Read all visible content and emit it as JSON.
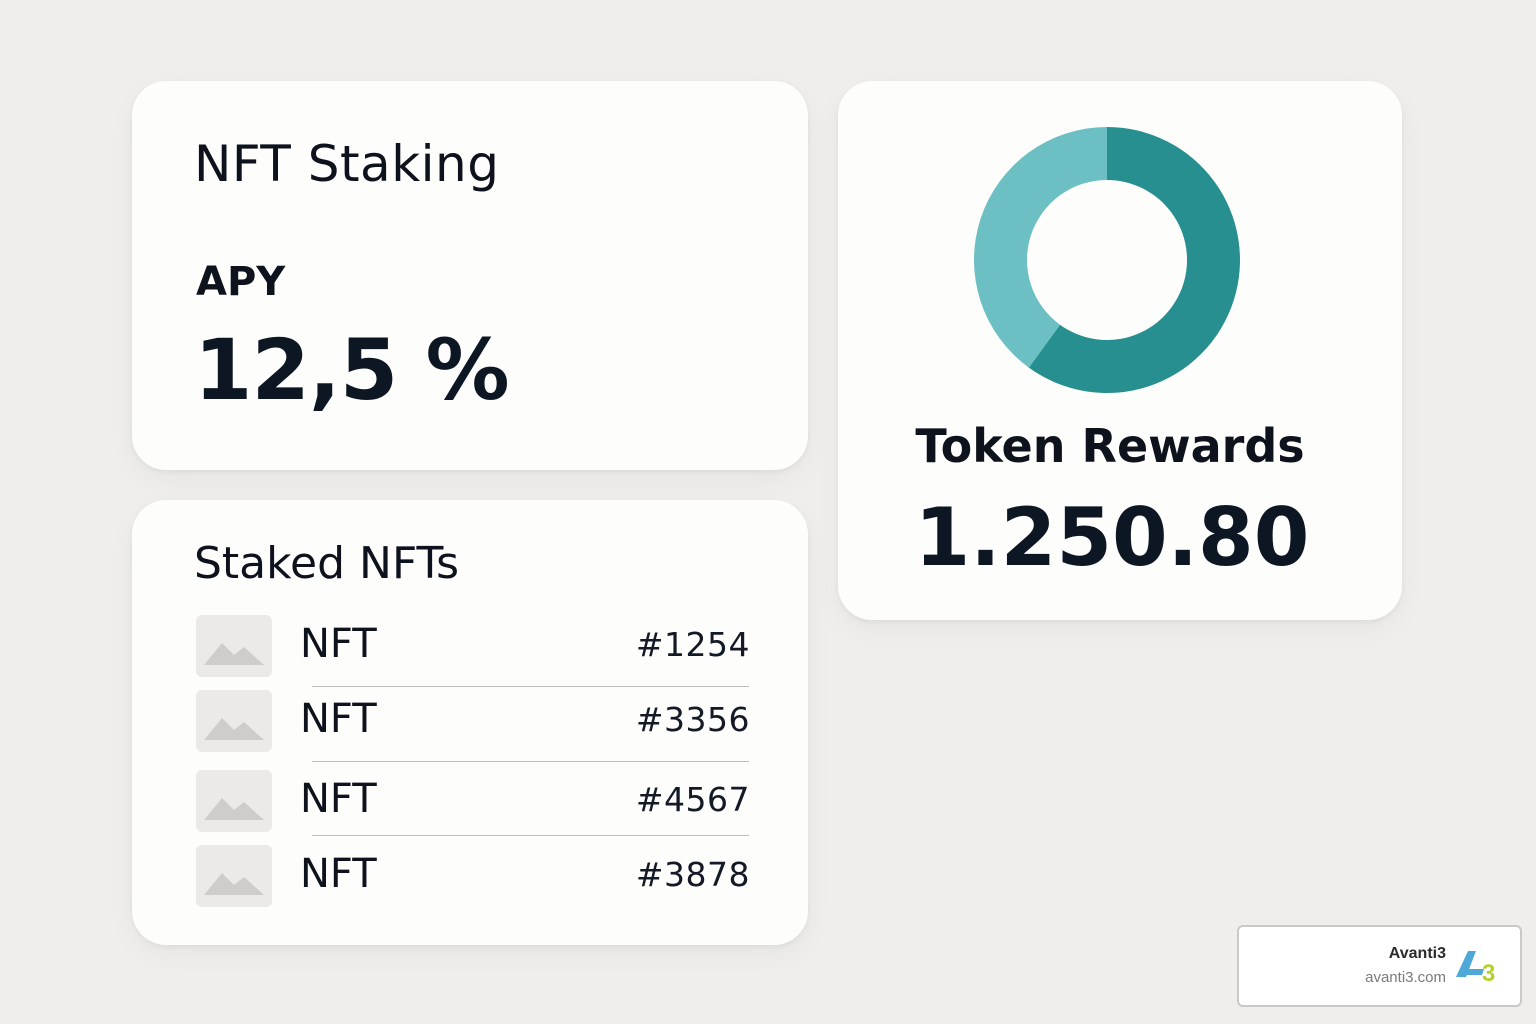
{
  "staking": {
    "title": "NFT Staking",
    "apy_label": "APY",
    "apy_value": "12,5 %"
  },
  "staked": {
    "title": "Staked NFTs",
    "items": [
      {
        "name": "NFT",
        "id": "#1254",
        "thumb_icon": "image-placeholder-icon"
      },
      {
        "name": "NFT",
        "id": "#3356",
        "thumb_icon": "image-placeholder-icon"
      },
      {
        "name": "NFT",
        "id": "#4567",
        "thumb_icon": "image-placeholder-icon"
      },
      {
        "name": "NFT",
        "id": "#3878",
        "thumb_icon": "image-placeholder-icon"
      }
    ]
  },
  "rewards": {
    "title": "Token Rewards",
    "value": "1.250.80",
    "donut": {
      "share_dark": 0.6,
      "share_light": 0.4,
      "color_dark": "#278f8f",
      "color_light": "#6cc0c3"
    }
  },
  "brand": {
    "name": "Avanti3",
    "url": "avanti3.com",
    "logo_icon": "avanti3-logo-icon",
    "logo_text": "3",
    "color_blue": "#4fa8d8",
    "color_lime": "#b5d12b"
  }
}
